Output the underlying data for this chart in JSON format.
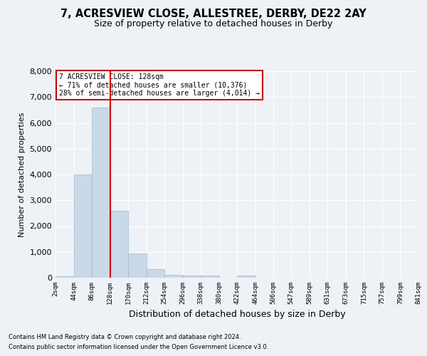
{
  "title_line1": "7, ACRESVIEW CLOSE, ALLESTREE, DERBY, DE22 2AY",
  "title_line2": "Size of property relative to detached houses in Derby",
  "xlabel": "Distribution of detached houses by size in Derby",
  "ylabel": "Number of detached properties",
  "annotation_line1": "7 ACRESVIEW CLOSE: 128sqm",
  "annotation_line2": "← 71% of detached houses are smaller (10,376)",
  "annotation_line3": "28% of semi-detached houses are larger (4,014) →",
  "bar_color": "#c9d9e8",
  "bar_edge_color": "#a0b8cc",
  "vline_color": "#cc0000",
  "vline_x": 128,
  "bin_edges": [
    2,
    44,
    86,
    128,
    170,
    212,
    254,
    296,
    338,
    380,
    422,
    464,
    506,
    547,
    589,
    631,
    673,
    715,
    757,
    799,
    841
  ],
  "bar_heights": [
    50,
    4000,
    6600,
    2600,
    950,
    330,
    120,
    90,
    70,
    0,
    90,
    0,
    0,
    0,
    0,
    0,
    0,
    0,
    0,
    0
  ],
  "ylim": [
    0,
    8000
  ],
  "yticks": [
    0,
    1000,
    2000,
    3000,
    4000,
    5000,
    6000,
    7000,
    8000
  ],
  "footnote_line1": "Contains HM Land Registry data © Crown copyright and database right 2024.",
  "footnote_line2": "Contains public sector information licensed under the Open Government Licence v3.0.",
  "background_color": "#eef2f7",
  "plot_background_color": "#eef2f7",
  "grid_color": "#ffffff",
  "title_fontsize": 10.5,
  "subtitle_fontsize": 9,
  "annotation_box_edge_color": "#cc0000",
  "tick_labels": [
    "2sqm",
    "44sqm",
    "86sqm",
    "128sqm",
    "170sqm",
    "212sqm",
    "254sqm",
    "296sqm",
    "338sqm",
    "380sqm",
    "422sqm",
    "464sqm",
    "506sqm",
    "547sqm",
    "589sqm",
    "631sqm",
    "673sqm",
    "715sqm",
    "757sqm",
    "799sqm",
    "841sqm"
  ]
}
